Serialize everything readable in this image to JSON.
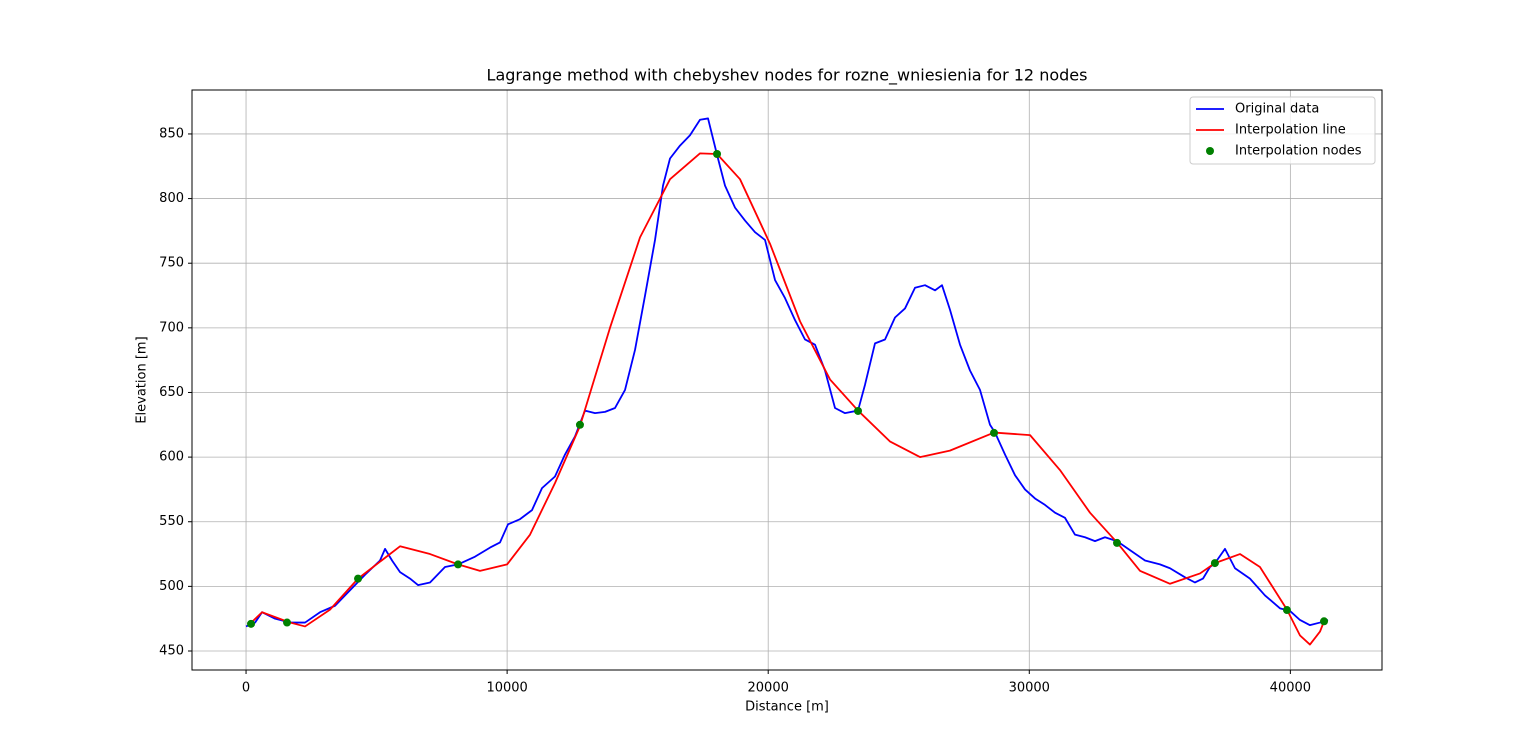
{
  "chart_data": {
    "type": "line",
    "title": "Lagrange method with chebyshev nodes for rozne_wniesienia for 12 nodes",
    "x_label": "Distance [m]",
    "y_label": "Elevation [m]",
    "xlim": [
      -2070,
      43510
    ],
    "ylim": [
      435.3,
      884.0
    ],
    "xticks": [
      0,
      10000,
      20000,
      30000,
      40000
    ],
    "yticks": [
      450,
      500,
      550,
      600,
      650,
      700,
      750,
      800,
      850
    ],
    "grid": true,
    "legend": "upper right",
    "series": [
      {
        "name": "Original data",
        "color": "#0000ff",
        "mode": "line",
        "x": [
          0,
          345,
          613,
          1111,
          1685,
          2260,
          2834,
          3409,
          3983,
          4558,
          5132,
          5324,
          5592,
          5898,
          6281,
          6587,
          7047,
          7621,
          8120,
          8771,
          9345,
          9728,
          10034,
          10494,
          10953,
          11336,
          11834,
          12217,
          12600,
          12983,
          13367,
          13750,
          14133,
          14516,
          14899,
          15282,
          15665,
          15971,
          16239,
          16622,
          17005,
          17388,
          17695,
          18039,
          18346,
          18729,
          19112,
          19495,
          19878,
          20261,
          20644,
          21027,
          21410,
          21793,
          22176,
          22559,
          22942,
          23440,
          23708,
          24091,
          24474,
          24857,
          25240,
          25623,
          26006,
          26389,
          26657,
          26963,
          27346,
          27729,
          28112,
          28495,
          28687,
          29070,
          29453,
          29836,
          30219,
          30602,
          30985,
          31368,
          31751,
          32134,
          32517,
          32900,
          33359,
          33857,
          34432,
          35006,
          35389,
          35964,
          36347,
          36653,
          36921,
          37113,
          37496,
          37879,
          38453,
          39028,
          39602,
          39985,
          40368,
          40751,
          41134,
          41441
        ],
        "values": [
          469,
          472,
          480,
          475,
          472,
          472,
          480,
          485,
          497,
          509,
          520,
          529,
          520,
          511,
          506,
          501,
          503,
          515,
          517,
          523,
          530,
          534,
          548,
          552,
          559,
          576,
          585,
          602,
          616,
          636,
          634,
          635,
          638,
          652,
          683,
          725,
          768,
          810,
          831,
          841,
          849,
          861,
          862,
          834,
          810,
          793,
          783,
          774,
          768,
          737,
          723,
          706,
          691,
          687,
          667,
          638,
          634,
          636,
          656,
          688,
          691,
          708,
          715,
          731,
          733,
          729,
          733,
          714,
          687,
          667,
          652,
          625,
          619,
          602,
          586,
          575,
          568,
          563,
          557,
          553,
          540,
          538,
          535,
          538,
          535,
          528,
          520,
          517,
          514,
          507,
          503,
          506,
          515,
          518,
          529,
          514,
          506,
          493,
          483,
          481,
          474,
          470,
          472,
          474
        ]
      },
      {
        "name": "Interpolation line",
        "color": "#ff0000",
        "mode": "line",
        "x": [
          153,
          613,
          1685,
          2260,
          3217,
          4290,
          5898,
          7047,
          8120,
          8962,
          10000,
          10877,
          11835,
          12790,
          13940,
          15090,
          16240,
          17390,
          18040,
          18920,
          20070,
          21220,
          22370,
          23440,
          24670,
          25815,
          26960,
          28650,
          30030,
          31175,
          32325,
          33360,
          34240,
          35390,
          36540,
          37110,
          38070,
          38835,
          39870,
          40370,
          40750,
          41135,
          41290
        ],
        "values": [
          471,
          480,
          472,
          469,
          482,
          506,
          531,
          525,
          517,
          512,
          517,
          540,
          580,
          624,
          700,
          770,
          815,
          835,
          834.5,
          815,
          765,
          705,
          660,
          636,
          612,
          600,
          605,
          619,
          617,
          590,
          557,
          534,
          512,
          502,
          510,
          518,
          525,
          515,
          482,
          462,
          455,
          465,
          473
        ]
      },
      {
        "name": "Interpolation nodes",
        "color": "#008000",
        "mode": "markers",
        "x": [
          191,
          1570,
          4290,
          8120,
          12790,
          18040,
          23440,
          28650,
          33360,
          37110,
          39870,
          41290
        ],
        "values": [
          471,
          472,
          506,
          517,
          625,
          834.5,
          635.7,
          618.7,
          533.6,
          518,
          481.7,
          473
        ]
      }
    ]
  }
}
